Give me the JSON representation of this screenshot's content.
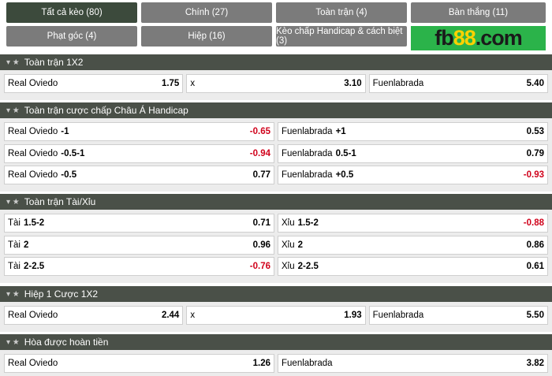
{
  "tabs": [
    "Tất cả kèo (80)",
    "Chính (27)",
    "Toàn trận (4)",
    "Bàn thắng (11)",
    "Phạt góc (4)",
    "Hiệp (16)",
    "Kèo chấp Handicap & cách biệt (3)"
  ],
  "active_tab": 0,
  "logo": [
    "fb",
    "88",
    ".com"
  ],
  "sections": [
    {
      "title": "Toàn trận 1X2",
      "rows": [
        [
          {
            "name": "Real Oviedo",
            "odds": "1.75"
          },
          {
            "name": "x",
            "odds": "3.10"
          },
          {
            "name": "Fuenlabrada",
            "odds": "5.40"
          }
        ]
      ]
    },
    {
      "title": "Toàn trận cược chấp Châu Á Handicap",
      "rows": [
        [
          {
            "name": "Real Oviedo",
            "handicap": "-1",
            "odds": "-0.65"
          },
          {
            "name": "Fuenlabrada",
            "handicap": "+1",
            "odds": "0.53"
          }
        ],
        [
          {
            "name": "Real Oviedo",
            "handicap": "-0.5-1",
            "odds": "-0.94"
          },
          {
            "name": "Fuenlabrada",
            "handicap": "0.5-1",
            "odds": "0.79"
          }
        ],
        [
          {
            "name": "Real Oviedo",
            "handicap": "-0.5",
            "odds": "0.77"
          },
          {
            "name": "Fuenlabrada",
            "handicap": "+0.5",
            "odds": "-0.93"
          }
        ]
      ]
    },
    {
      "title": "Toàn trận Tài/Xỉu",
      "rows": [
        [
          {
            "name": "Tài",
            "handicap": "1.5-2",
            "odds": "0.71"
          },
          {
            "name": "Xỉu",
            "handicap": "1.5-2",
            "odds": "-0.88"
          }
        ],
        [
          {
            "name": "Tài",
            "handicap": "2",
            "odds": "0.96"
          },
          {
            "name": "Xỉu",
            "handicap": "2",
            "odds": "0.86"
          }
        ],
        [
          {
            "name": "Tài",
            "handicap": "2-2.5",
            "odds": "-0.76"
          },
          {
            "name": "Xỉu",
            "handicap": "2-2.5",
            "odds": "0.61"
          }
        ]
      ]
    },
    {
      "title": "Hiệp 1 Cược 1X2",
      "rows": [
        [
          {
            "name": "Real Oviedo",
            "odds": "2.44"
          },
          {
            "name": "x",
            "odds": "1.93"
          },
          {
            "name": "Fuenlabrada",
            "odds": "5.50"
          }
        ]
      ]
    },
    {
      "title": "Hòa được hoàn tiền",
      "rows": [
        [
          {
            "name": "Real Oviedo",
            "odds": "1.26"
          },
          {
            "name": "Fuenlabrada",
            "odds": "3.82"
          }
        ]
      ]
    }
  ]
}
